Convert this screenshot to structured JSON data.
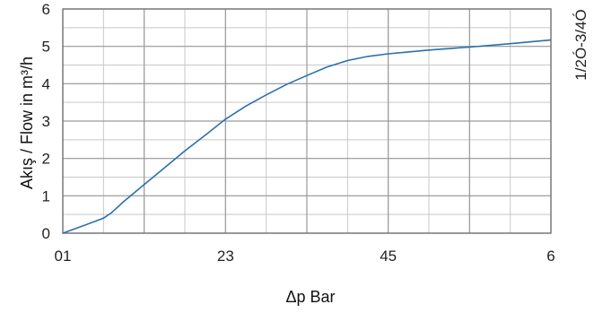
{
  "chart_data": {
    "type": "line",
    "xlabel": "Δp Bar",
    "ylabel": "Akış / Flow in m³/h",
    "side_label": "1/2Ó-3/4Ó",
    "xlim": [
      0,
      6
    ],
    "ylim": [
      0,
      6
    ],
    "x_ticks": [
      {
        "value": 0,
        "label": "01"
      },
      {
        "value": 2,
        "label": "23"
      },
      {
        "value": 4,
        "label": "45"
      },
      {
        "value": 6,
        "label": "6"
      }
    ],
    "y_ticks": [
      {
        "value": 0,
        "label": "0"
      },
      {
        "value": 1,
        "label": "1"
      },
      {
        "value": 2,
        "label": "2"
      },
      {
        "value": 3,
        "label": "3"
      },
      {
        "value": 4,
        "label": "4"
      },
      {
        "value": 5,
        "label": "5"
      },
      {
        "value": 6,
        "label": "6"
      }
    ],
    "grid": true,
    "x_minor_step": 0.5,
    "y_minor_step": 0.5,
    "series": [
      {
        "color": "#2a6faf",
        "points": [
          [
            0,
            0
          ],
          [
            0.25,
            0.2
          ],
          [
            0.5,
            0.4
          ],
          [
            0.6,
            0.55
          ],
          [
            0.75,
            0.85
          ],
          [
            1.0,
            1.3
          ],
          [
            1.25,
            1.75
          ],
          [
            1.5,
            2.2
          ],
          [
            1.75,
            2.62
          ],
          [
            2.0,
            3.05
          ],
          [
            2.25,
            3.4
          ],
          [
            2.5,
            3.7
          ],
          [
            2.75,
            3.98
          ],
          [
            3.0,
            4.22
          ],
          [
            3.25,
            4.45
          ],
          [
            3.5,
            4.62
          ],
          [
            3.75,
            4.73
          ],
          [
            4.0,
            4.8
          ],
          [
            4.25,
            4.85
          ],
          [
            4.5,
            4.9
          ],
          [
            5.0,
            4.98
          ],
          [
            5.5,
            5.07
          ],
          [
            6.0,
            5.17
          ]
        ]
      }
    ]
  }
}
